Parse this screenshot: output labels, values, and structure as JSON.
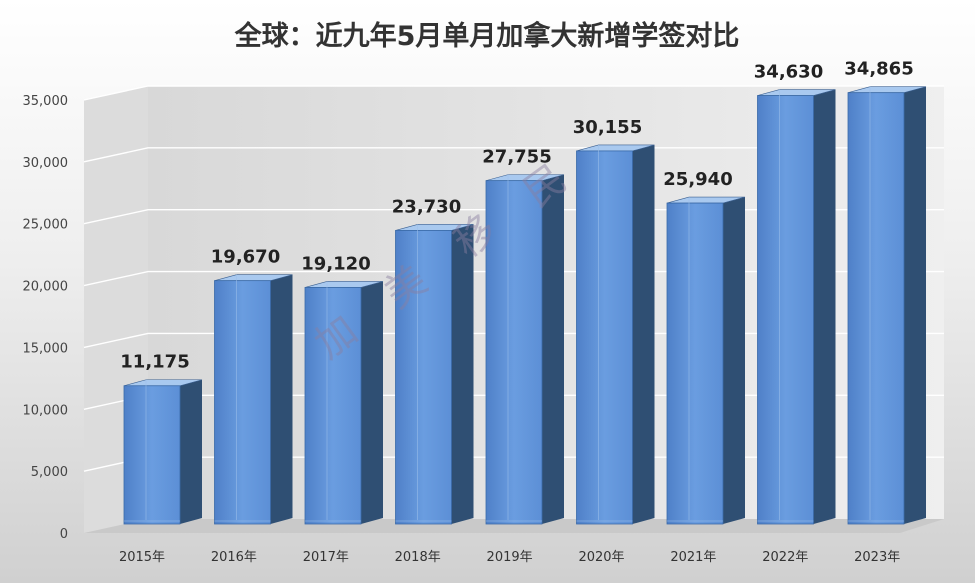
{
  "chart_data": {
    "type": "bar",
    "title": "全球：近九年5月单月加拿大新增学签对比",
    "categories": [
      "2015年",
      "2016年",
      "2017年",
      "2018年",
      "2019年",
      "2020年",
      "2021年",
      "2022年",
      "2023年"
    ],
    "values": [
      11175,
      19670,
      19120,
      23730,
      27755,
      30155,
      25940,
      34630,
      34865
    ],
    "value_labels": [
      "11,175",
      "19,670",
      "19,120",
      "23,730",
      "27,755",
      "30,155",
      "25,940",
      "34,630",
      "34,865"
    ],
    "yticks": [
      "0",
      "5,000",
      "10,000",
      "15,000",
      "20,000",
      "25,000",
      "30,000",
      "35,000"
    ],
    "ylim": [
      0,
      35000
    ],
    "grid": true,
    "style": "3d-column",
    "colors": {
      "bar_front": "#5b8fd8",
      "bar_side": "#2f4f73",
      "bar_top": "#a9c9ef",
      "grid": "#ffffff",
      "floor": "#c9c9c9",
      "label": "#222222"
    }
  },
  "watermark": "加美移民"
}
